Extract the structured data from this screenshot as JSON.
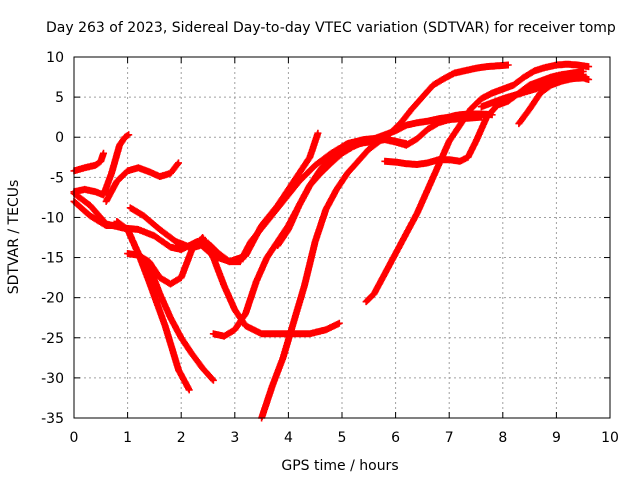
{
  "chart_data": {
    "type": "scatter",
    "title": "Day 263 of 2023, Sidereal Day-to-day VTEC variation (SDTVAR) for receiver tomp",
    "xlabel": "GPS time / hours",
    "ylabel": "SDTVAR / TECUs",
    "xlim": [
      0,
      10
    ],
    "ylim": [
      -35,
      10
    ],
    "xticks": [
      "0",
      "1",
      "2",
      "3",
      "4",
      "5",
      "6",
      "7",
      "8",
      "9",
      "10"
    ],
    "yticks": [
      "10",
      "5",
      "0",
      "-5",
      "-10",
      "-15",
      "-20",
      "-25",
      "-30",
      "-35"
    ],
    "grid": true,
    "marker": "+",
    "color": "#ff0000",
    "series": [
      {
        "x": [
          0.0,
          0.2,
          0.4,
          0.5,
          0.55
        ],
        "y": [
          -4.2,
          -3.8,
          -3.5,
          -3.0,
          -2.0
        ]
      },
      {
        "x": [
          0.0,
          0.2,
          0.4,
          0.55,
          0.7,
          0.85,
          0.95,
          1.02
        ],
        "y": [
          -6.8,
          -6.5,
          -6.8,
          -7.2,
          -4.5,
          -1.0,
          0.0,
          0.3
        ]
      },
      {
        "x": [
          0.6,
          0.8,
          1.0,
          1.2,
          1.4,
          1.6,
          1.8,
          1.95
        ],
        "y": [
          -8.0,
          -5.5,
          -4.2,
          -3.8,
          -4.3,
          -4.9,
          -4.5,
          -3.2
        ]
      },
      {
        "x": [
          0.0,
          0.3,
          0.6,
          0.9,
          1.2,
          1.5,
          1.8,
          2.0,
          2.3,
          2.6,
          2.9,
          3.2,
          3.5,
          3.8,
          4.1,
          4.4,
          4.55
        ],
        "y": [
          -7.0,
          -8.5,
          -10.8,
          -11.3,
          -11.5,
          -12.3,
          -13.7,
          -14.0,
          -13.0,
          -14.8,
          -15.5,
          -14.8,
          -11.0,
          -8.5,
          -5.5,
          -2.5,
          0.5
        ]
      },
      {
        "x": [
          0.0,
          0.3,
          0.6,
          0.8,
          1.0,
          1.2,
          1.4,
          1.7,
          1.95,
          2.15
        ],
        "y": [
          -8.0,
          -9.8,
          -11.0,
          -11.0,
          -11.5,
          -14.5,
          -18.0,
          -23.5,
          -29.0,
          -31.5
        ]
      },
      {
        "x": [
          0.8,
          1.0,
          1.2,
          1.4,
          1.6,
          1.8,
          2.0,
          2.2,
          2.4,
          2.6
        ],
        "y": [
          -10.5,
          -11.5,
          -14.5,
          -16.0,
          -19.5,
          -22.5,
          -25.0,
          -27.0,
          -28.8,
          -30.3
        ]
      },
      {
        "x": [
          1.0,
          1.2,
          1.4,
          1.6,
          1.8,
          2.0,
          2.2,
          2.4,
          2.6,
          2.8,
          3.0,
          3.2,
          3.5,
          3.8,
          4.1,
          4.4,
          4.7,
          4.95
        ],
        "y": [
          -14.5,
          -14.7,
          -15.5,
          -17.5,
          -18.3,
          -17.5,
          -14.0,
          -12.5,
          -15.0,
          -18.5,
          -21.5,
          -23.5,
          -24.5,
          -24.5,
          -24.5,
          -24.5,
          -24.0,
          -23.2
        ]
      },
      {
        "x": [
          1.05,
          1.3,
          1.6,
          1.9,
          2.2,
          2.5,
          2.7,
          2.9,
          3.1,
          3.3,
          3.6,
          3.9,
          4.2,
          4.5,
          4.8,
          5.1,
          5.4,
          5.7,
          6.0,
          6.2
        ],
        "y": [
          -8.8,
          -9.8,
          -11.5,
          -13.0,
          -13.8,
          -13.2,
          -14.5,
          -15.5,
          -15.5,
          -13.0,
          -10.5,
          -8.0,
          -5.5,
          -3.5,
          -2.0,
          -0.8,
          -0.3,
          -0.1,
          -0.5,
          -0.8
        ]
      },
      {
        "x": [
          2.6,
          2.8,
          3.0,
          3.2,
          3.4,
          3.6,
          3.8,
          4.0,
          4.2,
          4.4,
          4.6,
          4.8,
          5.0,
          5.2,
          5.4,
          5.6,
          5.8,
          6.0,
          6.2,
          6.4,
          6.6,
          6.8,
          7.0,
          7.2,
          7.4,
          7.6
        ],
        "y": [
          -24.5,
          -24.8,
          -24.0,
          -22.0,
          -18.0,
          -15.0,
          -13.0,
          -11.0,
          -8.5,
          -6.0,
          -4.0,
          -2.5,
          -1.5,
          -1.0,
          -0.7,
          -0.5,
          -0.3,
          -0.6,
          -1.0,
          -0.2,
          1.0,
          1.8,
          2.2,
          2.3,
          2.4,
          2.5
        ]
      },
      {
        "x": [
          3.5,
          3.7,
          3.9,
          4.1,
          4.3,
          4.5,
          4.7,
          4.9,
          5.1,
          5.3,
          5.5,
          5.7,
          5.9,
          6.1,
          6.3,
          6.5,
          6.7,
          6.9,
          7.1,
          7.3,
          7.5,
          7.7,
          7.9,
          8.1
        ],
        "y": [
          -35.0,
          -31.0,
          -27.5,
          -23.0,
          -18.5,
          -13.0,
          -9.0,
          -6.5,
          -4.5,
          -3.0,
          -1.5,
          -0.5,
          0.5,
          1.8,
          3.5,
          5.0,
          6.5,
          7.3,
          8.0,
          8.3,
          8.6,
          8.8,
          8.9,
          9.0
        ]
      },
      {
        "x": [
          3.8,
          4.0,
          4.2,
          4.4,
          4.6,
          4.8,
          5.0,
          5.2,
          5.4,
          5.6,
          5.8,
          6.0,
          6.2,
          6.4,
          6.6,
          6.8,
          7.0,
          7.1,
          7.2,
          7.4,
          7.6,
          7.8
        ],
        "y": [
          -13.5,
          -11.5,
          -8.5,
          -6.0,
          -4.5,
          -3.2,
          -2.0,
          -1.2,
          -0.6,
          -0.2,
          0.3,
          0.8,
          1.5,
          1.8,
          2.0,
          2.3,
          2.5,
          2.7,
          2.8,
          2.9,
          2.9,
          2.8
        ]
      },
      {
        "x": [
          5.45,
          5.6,
          5.8,
          6.0,
          6.2,
          6.4,
          6.6,
          6.8,
          7.0,
          7.2,
          7.4,
          7.6,
          7.8,
          8.0,
          8.2,
          8.4,
          8.6,
          8.8,
          9.0,
          9.2,
          9.4,
          9.6
        ],
        "y": [
          -20.5,
          -19.5,
          -17.0,
          -14.5,
          -12.0,
          -9.5,
          -6.5,
          -3.5,
          -0.5,
          1.5,
          3.5,
          4.8,
          5.5,
          6.0,
          6.5,
          7.5,
          8.3,
          8.7,
          9.0,
          9.1,
          9.0,
          8.8
        ]
      },
      {
        "x": [
          5.8,
          6.0,
          6.2,
          6.4,
          6.6,
          6.8,
          7.0,
          7.2,
          7.35,
          7.5,
          7.7,
          7.9,
          8.1,
          8.3,
          8.5,
          8.7,
          8.9,
          9.1,
          9.3,
          9.5
        ],
        "y": [
          -3.0,
          -3.1,
          -3.3,
          -3.4,
          -3.2,
          -2.8,
          -2.8,
          -3.0,
          -2.5,
          -0.5,
          2.5,
          4.0,
          4.5,
          5.5,
          6.5,
          7.0,
          7.5,
          7.8,
          8.0,
          8.2
        ]
      },
      {
        "x": [
          7.6,
          7.8,
          8.0,
          8.2,
          8.4,
          8.6,
          8.8,
          9.0,
          9.2,
          9.4,
          9.55
        ],
        "y": [
          3.8,
          4.3,
          4.8,
          5.2,
          5.6,
          6.0,
          6.5,
          7.0,
          7.3,
          7.5,
          7.5
        ]
      },
      {
        "x": [
          8.3,
          8.5,
          8.7,
          8.9,
          9.1,
          9.3,
          9.5,
          9.6
        ],
        "y": [
          1.7,
          3.5,
          5.5,
          6.5,
          7.0,
          7.3,
          7.4,
          7.2
        ]
      }
    ]
  }
}
